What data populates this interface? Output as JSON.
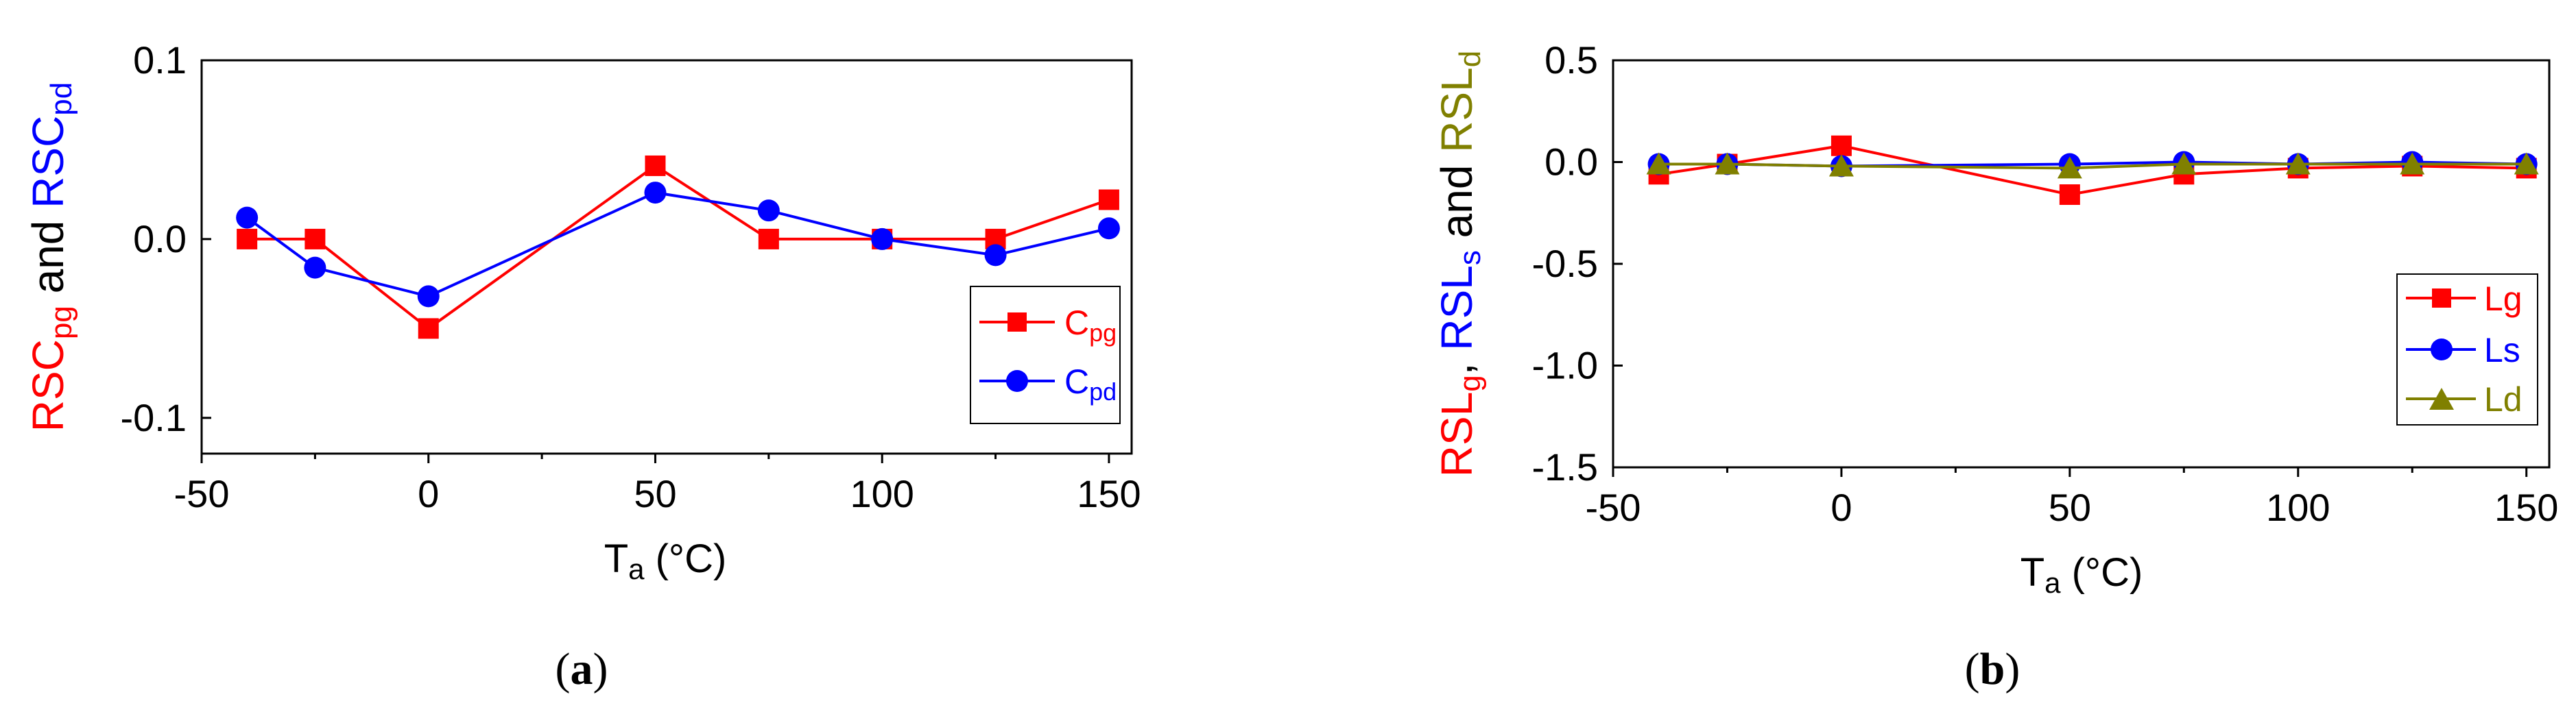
{
  "chart_data": [
    {
      "type": "line",
      "caption": "(a)",
      "xlabel": "Ta (°C)",
      "ylabel": "RSCpg and RSCpd",
      "xlim": [
        -50,
        155
      ],
      "ylim": [
        -0.12,
        0.1
      ],
      "xticks": [
        "-50",
        "0",
        "50",
        "100",
        "150"
      ],
      "yticks": [
        "-0.1",
        "0.0",
        "0.1"
      ],
      "legend_position": "bottom-right",
      "series": [
        {
          "name": "Cpg",
          "color": "#ff0000",
          "marker": "square",
          "x": [
            -40,
            -25,
            0,
            50,
            75,
            100,
            125,
            150
          ],
          "y": [
            0.0,
            0.0,
            -0.05,
            0.041,
            0.0,
            0.0,
            0.0,
            0.022
          ]
        },
        {
          "name": "Cpd",
          "color": "#0000ff",
          "marker": "circle",
          "x": [
            -40,
            -25,
            0,
            50,
            75,
            100,
            125,
            150
          ],
          "y": [
            0.012,
            -0.016,
            -0.032,
            0.026,
            0.016,
            0.0,
            -0.009,
            0.006
          ]
        }
      ]
    },
    {
      "type": "line",
      "caption": "(b)",
      "xlabel": "Ta (°C)",
      "ylabel": "RSLg, RSLs and RSLd",
      "xlim": [
        -50,
        155
      ],
      "ylim": [
        -1.5,
        0.5
      ],
      "xticks": [
        "-50",
        "0",
        "50",
        "100",
        "150"
      ],
      "yticks": [
        "-1.5",
        "-1.0",
        "-0.5",
        "0.0",
        "0.5"
      ],
      "legend_position": "bottom-right",
      "series": [
        {
          "name": "Lg",
          "color": "#ff0000",
          "marker": "square",
          "x": [
            -40,
            -25,
            0,
            50,
            75,
            100,
            125,
            150
          ],
          "y": [
            -0.06,
            -0.01,
            0.08,
            -0.16,
            -0.06,
            -0.03,
            -0.02,
            -0.03
          ]
        },
        {
          "name": "Ls",
          "color": "#0000ff",
          "marker": "circle",
          "x": [
            -40,
            -25,
            0,
            50,
            75,
            100,
            125,
            150
          ],
          "y": [
            -0.01,
            -0.01,
            -0.02,
            -0.01,
            0.0,
            -0.01,
            0.0,
            -0.01
          ]
        },
        {
          "name": "Ld",
          "color": "#808000",
          "marker": "triangle",
          "x": [
            -40,
            -25,
            0,
            50,
            75,
            100,
            125,
            150
          ],
          "y": [
            -0.01,
            -0.01,
            -0.02,
            -0.03,
            -0.01,
            -0.01,
            -0.01,
            -0.01
          ]
        }
      ]
    }
  ]
}
